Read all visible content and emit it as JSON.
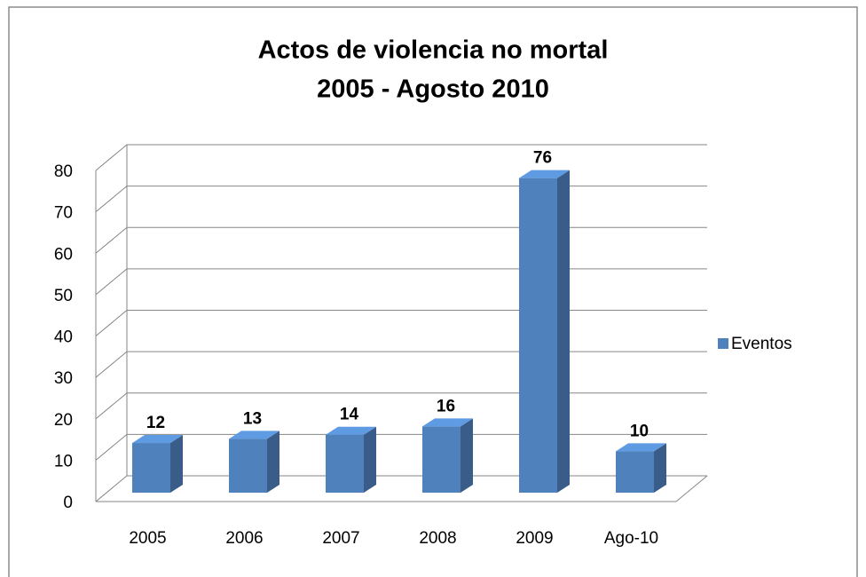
{
  "chart_data": {
    "type": "bar3d",
    "title": [
      "Actos de violencia no mortal",
      "2005 - Agosto 2010"
    ],
    "categories": [
      "2005",
      "2006",
      "2007",
      "2008",
      "2009",
      "Ago-10"
    ],
    "series": [
      {
        "name": "Eventos",
        "color": "#4f81bd",
        "values": [
          12,
          13,
          14,
          16,
          76,
          10
        ]
      }
    ],
    "ylim": [
      0,
      80
    ],
    "yticks": [
      0,
      10,
      20,
      30,
      40,
      50,
      60,
      70,
      80
    ],
    "grid": true,
    "legend": "right",
    "data_labels": true
  }
}
